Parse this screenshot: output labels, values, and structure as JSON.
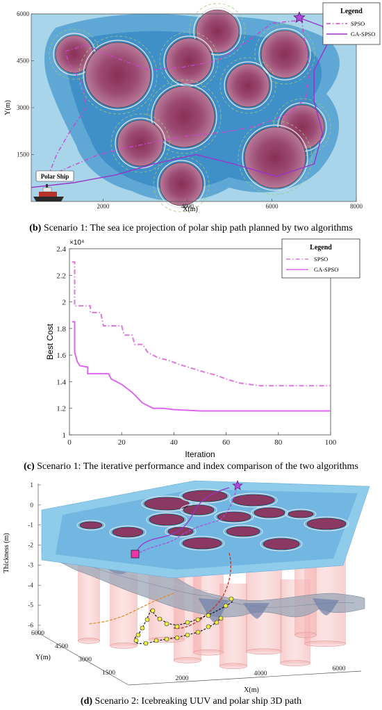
{
  "colors": {
    "spso": "#cc44cc",
    "gaspso": "#9933cc",
    "spso_c": "#dd77dd",
    "gaspso_c": "#dd66ee"
  },
  "captions": {
    "b_letter": "(b)",
    "b_text": " Scenario 1: The sea ice projection of polar ship path planned by two algorithms",
    "c_letter": "(c)",
    "c_text": " Scenario 1: The iterative performance and index comparison of the two algorithms",
    "d_letter": "(d)",
    "d_text": " Scenario 2: Icebreaking UUV and polar ship 3D path"
  },
  "chart_data": [
    {
      "type": "scatter",
      "panel": "b",
      "xlabel": "X(m)",
      "ylabel": "Y(m)",
      "xticks": [
        "2000",
        "4000",
        "6000",
        "8000"
      ],
      "yticks": [
        "1500",
        "3000",
        "4500",
        "6000"
      ],
      "xlim": [
        300,
        8000
      ],
      "ylim": [
        0,
        6000
      ],
      "annotation": "Polar Ship",
      "legend": {
        "title": "Legend",
        "entries": [
          "SPSO",
          "GA-SPSO"
        ]
      },
      "series": [
        {
          "name": "SPSO",
          "points": [
            [
              700,
              800
            ],
            [
              900,
              1500
            ],
            [
              1200,
              2200
            ],
            [
              1600,
              3000
            ],
            [
              1500,
              3800
            ],
            [
              1200,
              4400
            ],
            [
              1100,
              4800
            ],
            [
              1600,
              5000
            ],
            [
              2300,
              4600
            ],
            [
              3100,
              4200
            ],
            [
              3900,
              4300
            ],
            [
              4700,
              4500
            ],
            [
              5400,
              5100
            ],
            [
              6000,
              5700
            ],
            [
              6700,
              5800
            ],
            [
              6800,
              5000
            ],
            [
              6900,
              4200
            ],
            [
              6800,
              3300
            ],
            [
              6400,
              2800
            ],
            [
              5600,
              2400
            ],
            [
              4800,
              2200
            ],
            [
              4000,
              2100
            ],
            [
              3200,
              1900
            ],
            [
              2500,
              1700
            ],
            [
              1900,
              1500
            ],
            [
              1200,
              1100
            ],
            [
              700,
              800
            ]
          ]
        },
        {
          "name": "GA-SPSO",
          "points": [
            [
              300,
              450
            ],
            [
              1300,
              600
            ],
            [
              2300,
              850
            ],
            [
              3200,
              1200
            ],
            [
              4200,
              1500
            ],
            [
              5100,
              1200
            ],
            [
              6100,
              800
            ],
            [
              7000,
              1200
            ],
            [
              7200,
              2200
            ],
            [
              7000,
              3200
            ],
            [
              7000,
              4200
            ],
            [
              7300,
              5000
            ],
            [
              7200,
              5600
            ],
            [
              6600,
              5900
            ]
          ]
        }
      ]
    },
    {
      "type": "line",
      "panel": "c",
      "xlabel": "Iteration",
      "ylabel": "Best Cost",
      "exponent": "×10⁴",
      "xlim": [
        0,
        100
      ],
      "ylim": [
        1,
        2.4
      ],
      "xticks": [
        "0",
        "20",
        "40",
        "60",
        "80",
        "100"
      ],
      "yticks": [
        "1",
        "1.2",
        "1.4",
        "1.6",
        "1.8",
        "2",
        "2.2",
        "2.4"
      ],
      "legend": {
        "title": "Legend",
        "entries": [
          "SPSO",
          "GA-SPSO"
        ]
      },
      "series": [
        {
          "name": "SPSO",
          "points": [
            [
              1,
              2.3
            ],
            [
              2,
              2.3
            ],
            [
              2,
              1.97
            ],
            [
              8,
              1.97
            ],
            [
              8,
              1.92
            ],
            [
              12,
              1.92
            ],
            [
              13,
              1.82
            ],
            [
              20,
              1.82
            ],
            [
              21,
              1.75
            ],
            [
              24,
              1.75
            ],
            [
              25,
              1.68
            ],
            [
              28,
              1.68
            ],
            [
              30,
              1.62
            ],
            [
              34,
              1.58
            ],
            [
              38,
              1.56
            ],
            [
              42,
              1.53
            ],
            [
              47,
              1.5
            ],
            [
              52,
              1.47
            ],
            [
              56,
              1.45
            ],
            [
              60,
              1.42
            ],
            [
              65,
              1.39
            ],
            [
              69,
              1.38
            ],
            [
              73,
              1.37
            ],
            [
              80,
              1.37
            ],
            [
              100,
              1.37
            ]
          ]
        },
        {
          "name": "GA-SPSO",
          "points": [
            [
              1,
              1.85
            ],
            [
              2,
              1.85
            ],
            [
              2,
              1.62
            ],
            [
              3,
              1.55
            ],
            [
              4,
              1.52
            ],
            [
              7,
              1.51
            ],
            [
              7,
              1.46
            ],
            [
              15,
              1.46
            ],
            [
              16,
              1.42
            ],
            [
              18,
              1.4
            ],
            [
              20,
              1.38
            ],
            [
              22,
              1.35
            ],
            [
              24,
              1.32
            ],
            [
              26,
              1.28
            ],
            [
              28,
              1.24
            ],
            [
              30,
              1.22
            ],
            [
              32,
              1.2
            ],
            [
              36,
              1.2
            ],
            [
              40,
              1.19
            ],
            [
              50,
              1.18
            ],
            [
              60,
              1.18
            ],
            [
              80,
              1.18
            ],
            [
              100,
              1.18
            ]
          ]
        }
      ]
    },
    {
      "type": "scatter",
      "panel": "d",
      "zlabel": "Thickness (m)",
      "ylabel": "Y(m)",
      "xlabel": "X(m)",
      "zticks": [
        "1",
        "0",
        "-1",
        "-2",
        "-3",
        "-4",
        "-5",
        "-6"
      ],
      "yticks": [
        "6000",
        "4500",
        "3000",
        "1500"
      ],
      "xticks": [
        "2000",
        "4000",
        "6000"
      ]
    }
  ]
}
